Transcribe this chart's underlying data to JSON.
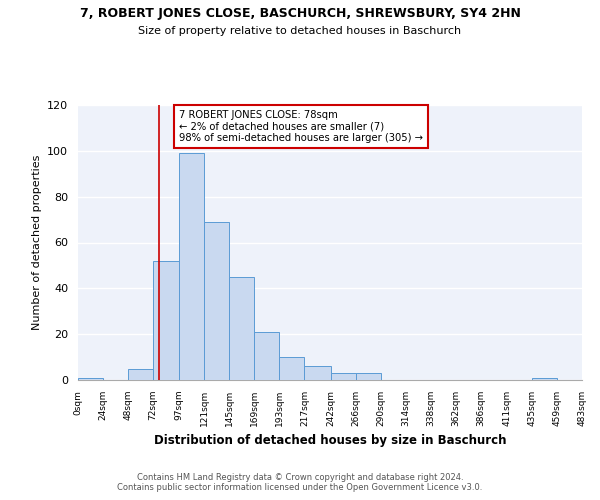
{
  "title": "7, ROBERT JONES CLOSE, BASCHURCH, SHREWSBURY, SY4 2HN",
  "subtitle": "Size of property relative to detached houses in Baschurch",
  "xlabel": "Distribution of detached houses by size in Baschurch",
  "ylabel": "Number of detached properties",
  "bin_edges": [
    0,
    24,
    48,
    72,
    97,
    121,
    145,
    169,
    193,
    217,
    242,
    266,
    290,
    314,
    338,
    362,
    386,
    411,
    435,
    459,
    483
  ],
  "bar_heights": [
    1,
    0,
    5,
    52,
    99,
    69,
    45,
    21,
    10,
    6,
    3,
    3,
    0,
    0,
    0,
    0,
    0,
    0,
    1,
    0
  ],
  "bar_color": "#c9d9f0",
  "bar_edge_color": "#5b9bd5",
  "property_line_x": 78,
  "property_line_color": "#cc0000",
  "annotation_title": "7 ROBERT JONES CLOSE: 78sqm",
  "annotation_line1": "← 2% of detached houses are smaller (7)",
  "annotation_line2": "98% of semi-detached houses are larger (305) →",
  "annotation_box_color": "#cc0000",
  "ylim": [
    0,
    120
  ],
  "yticks": [
    0,
    20,
    40,
    60,
    80,
    100,
    120
  ],
  "tick_labels": [
    "0sqm",
    "24sqm",
    "48sqm",
    "72sqm",
    "97sqm",
    "121sqm",
    "145sqm",
    "169sqm",
    "193sqm",
    "217sqm",
    "242sqm",
    "266sqm",
    "290sqm",
    "314sqm",
    "338sqm",
    "362sqm",
    "386sqm",
    "411sqm",
    "435sqm",
    "459sqm",
    "483sqm"
  ],
  "footer_line1": "Contains HM Land Registry data © Crown copyright and database right 2024.",
  "footer_line2": "Contains public sector information licensed under the Open Government Licence v3.0.",
  "bg_color": "#eef2fa",
  "grid_color": "#ffffff"
}
